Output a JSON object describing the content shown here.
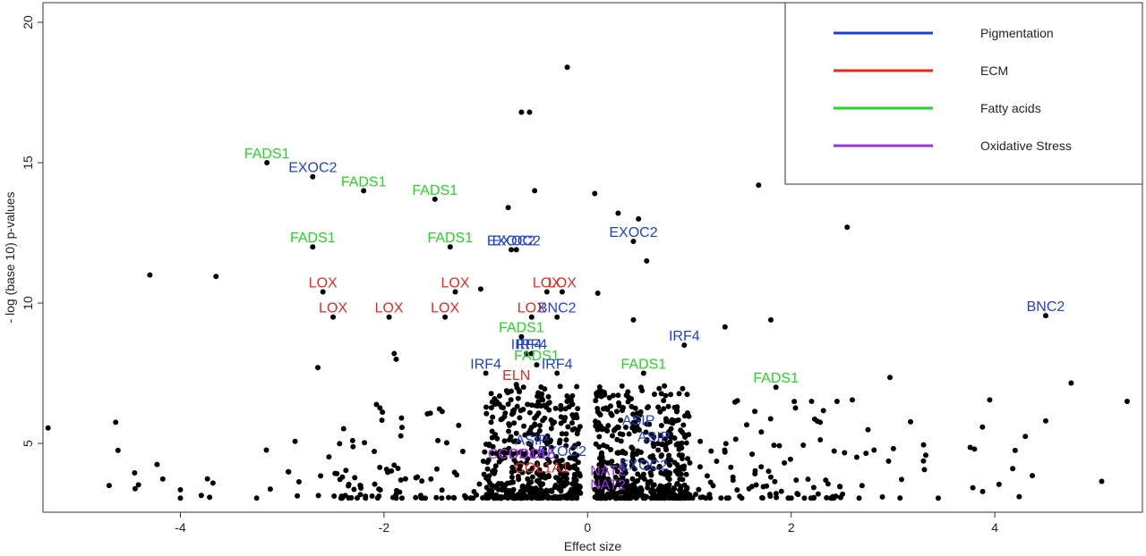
{
  "chart_data": {
    "type": "scatter",
    "title": "",
    "xlabel": "Effect size",
    "ylabel": "- log (base 10) p-values",
    "xlim": [
      -5.35,
      5.45
    ],
    "ylim": [
      2.55,
      20.7
    ],
    "x_ticks": [
      -4,
      -2,
      0,
      2,
      4
    ],
    "y_ticks": [
      5,
      10,
      15,
      20
    ],
    "legend": {
      "placement": "top-right",
      "entries": [
        {
          "name": "Pigmentation",
          "color": "#1f3fd8"
        },
        {
          "name": "ECM",
          "color": "#e8281f"
        },
        {
          "name": "Fatty acids",
          "color": "#22d622"
        },
        {
          "name": "Oxidative Stress",
          "color": "#9b30e0"
        }
      ]
    },
    "labeled_points": [
      {
        "label": "FADS1",
        "group": "Fatty acids",
        "x": -3.15,
        "y": 15.0
      },
      {
        "label": "EXOC2",
        "group": "Pigmentation",
        "x": -2.7,
        "y": 14.5
      },
      {
        "label": "FADS1",
        "group": "Fatty acids",
        "x": -2.2,
        "y": 14.0
      },
      {
        "label": "FADS1",
        "group": "Fatty acids",
        "x": -1.5,
        "y": 13.7
      },
      {
        "label": "FADS1",
        "group": "Fatty acids",
        "x": -2.7,
        "y": 12.0
      },
      {
        "label": "FADS1",
        "group": "Fatty acids",
        "x": -1.35,
        "y": 12.0
      },
      {
        "label": "EXOC2",
        "group": "Pigmentation",
        "x": -0.75,
        "y": 11.9
      },
      {
        "label": "EXOC2",
        "group": "Pigmentation",
        "x": -0.7,
        "y": 11.9
      },
      {
        "label": "EXOC2",
        "group": "Pigmentation",
        "x": 0.45,
        "y": 12.2
      },
      {
        "label": "LOX",
        "group": "ECM",
        "x": -2.6,
        "y": 10.4
      },
      {
        "label": "LOX",
        "group": "ECM",
        "x": -1.3,
        "y": 10.4
      },
      {
        "label": "LOX",
        "group": "ECM",
        "x": -0.4,
        "y": 10.4
      },
      {
        "label": "LOX",
        "group": "ECM",
        "x": -0.25,
        "y": 10.4
      },
      {
        "label": "LOX",
        "group": "ECM",
        "x": -2.5,
        "y": 9.5
      },
      {
        "label": "LOX",
        "group": "ECM",
        "x": -1.95,
        "y": 9.5
      },
      {
        "label": "LOX",
        "group": "ECM",
        "x": -1.4,
        "y": 9.5
      },
      {
        "label": "LOX",
        "group": "ECM",
        "x": -0.55,
        "y": 9.5
      },
      {
        "label": "BNC2",
        "group": "Pigmentation",
        "x": -0.3,
        "y": 9.5
      },
      {
        "label": "BNC2",
        "group": "Pigmentation",
        "x": 4.5,
        "y": 9.55
      },
      {
        "label": "FADS1",
        "group": "Fatty acids",
        "x": -0.65,
        "y": 8.8
      },
      {
        "label": "IRF4",
        "group": "Pigmentation",
        "x": -0.6,
        "y": 8.2
      },
      {
        "label": "IRF4",
        "group": "Pigmentation",
        "x": -0.55,
        "y": 8.2
      },
      {
        "label": "FADS1",
        "group": "Fatty acids",
        "x": -0.5,
        "y": 7.8
      },
      {
        "label": "IRF4",
        "group": "Pigmentation",
        "x": -1.0,
        "y": 7.5
      },
      {
        "label": "IRF4",
        "group": "Pigmentation",
        "x": -0.3,
        "y": 7.5
      },
      {
        "label": "IRF4",
        "group": "Pigmentation",
        "x": 0.95,
        "y": 8.5
      },
      {
        "label": "FADS1",
        "group": "Fatty acids",
        "x": 0.55,
        "y": 7.5
      },
      {
        "label": "FADS1",
        "group": "Fatty acids",
        "x": 1.85,
        "y": 7.0
      },
      {
        "label": "ELN",
        "group": "ECM",
        "x": -0.7,
        "y": 7.1
      },
      {
        "label": "ASIP",
        "group": "Pigmentation",
        "x": 0.5,
        "y": 5.5
      },
      {
        "label": "ASIP",
        "group": "Pigmentation",
        "x": 0.65,
        "y": 4.9
      },
      {
        "label": "ASIP",
        "group": "Pigmentation",
        "x": -0.55,
        "y": 4.8
      },
      {
        "label": "EXOC2",
        "group": "Pigmentation",
        "x": -0.25,
        "y": 4.4
      },
      {
        "label": "EXOC2",
        "group": "Pigmentation",
        "x": 0.55,
        "y": 3.9
      },
      {
        "label": "CCDC15",
        "group": "Oxidative Stress",
        "x": -0.7,
        "y": 4.3
      },
      {
        "label": "CCDC15",
        "group": "Oxidative Stress",
        "x": -0.6,
        "y": 4.3
      },
      {
        "label": "COL1A1",
        "group": "ECM",
        "x": -0.45,
        "y": 3.8
      },
      {
        "label": "NAT2",
        "group": "Oxidative Stress",
        "x": 0.2,
        "y": 3.7
      },
      {
        "label": "NAT2",
        "group": "Oxidative Stress",
        "x": 0.2,
        "y": 3.2
      }
    ],
    "seed_points": [
      {
        "x": -0.2,
        "y": 18.4
      },
      {
        "x": -0.65,
        "y": 16.8
      },
      {
        "x": -0.57,
        "y": 16.8
      },
      {
        "x": -0.52,
        "y": 14.0
      },
      {
        "x": 0.07,
        "y": 13.9
      },
      {
        "x": 0.3,
        "y": 13.2
      },
      {
        "x": 0.5,
        "y": 13.0
      },
      {
        "x": 1.68,
        "y": 14.2
      },
      {
        "x": 2.55,
        "y": 12.7
      },
      {
        "x": -0.78,
        "y": 13.4
      },
      {
        "x": 0.58,
        "y": 11.5
      },
      {
        "x": -4.3,
        "y": 11.0
      },
      {
        "x": -3.65,
        "y": 10.95
      },
      {
        "x": -1.05,
        "y": 10.5
      },
      {
        "x": 0.1,
        "y": 10.35
      },
      {
        "x": 0.45,
        "y": 9.4
      },
      {
        "x": 1.35,
        "y": 9.15
      },
      {
        "x": 1.8,
        "y": 9.4
      },
      {
        "x": -1.9,
        "y": 8.2
      },
      {
        "x": -1.88,
        "y": 8.0
      },
      {
        "x": -2.65,
        "y": 7.7
      },
      {
        "x": 2.97,
        "y": 7.35
      },
      {
        "x": 4.75,
        "y": 7.15
      },
      {
        "x": 5.3,
        "y": 6.5
      },
      {
        "x": 3.95,
        "y": 6.55
      },
      {
        "x": 2.6,
        "y": 6.55
      },
      {
        "x": 2.45,
        "y": 6.5
      },
      {
        "x": 2.2,
        "y": 6.5
      },
      {
        "x": -5.3,
        "y": 5.55
      },
      {
        "x": -4.7,
        "y": 3.5
      },
      {
        "x": -4.45,
        "y": 3.95
      },
      {
        "x": -4.0,
        "y": 3.35
      },
      {
        "x": -4.0,
        "y": 3.05
      },
      {
        "x": 5.05,
        "y": 3.65
      },
      {
        "x": 4.5,
        "y": 5.8
      },
      {
        "x": 4.3,
        "y": 5.25
      },
      {
        "x": 4.2,
        "y": 4.75
      },
      {
        "x": 3.8,
        "y": 4.8
      },
      {
        "x": 3.3,
        "y": 4.95
      }
    ],
    "cloud": {
      "count": 1250
    }
  }
}
